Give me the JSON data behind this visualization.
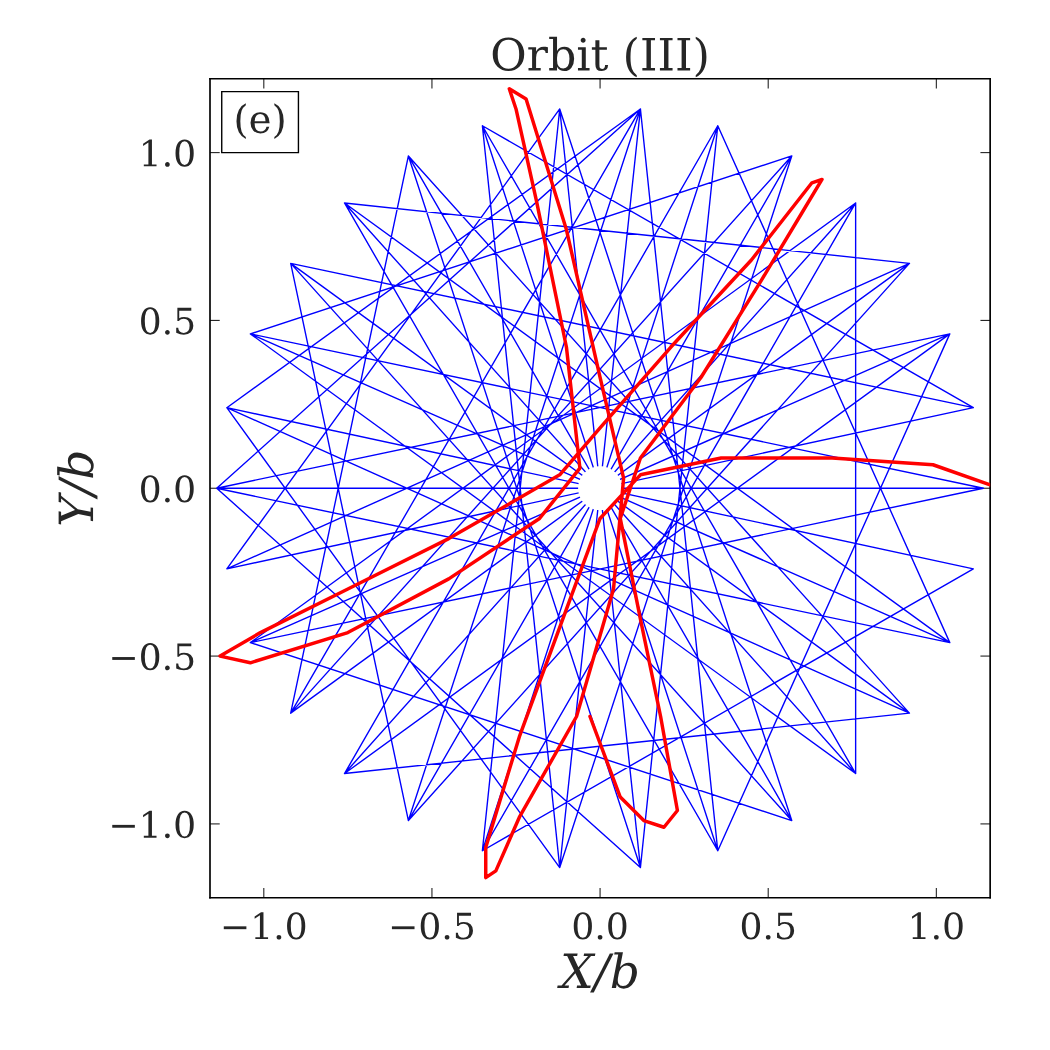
{
  "chart_data": {
    "type": "line",
    "title": "Orbit (III)",
    "xlabel": "X/b",
    "ylabel": "Y/b",
    "xlim": [
      -1.16,
      1.16
    ],
    "ylim": [
      -1.22,
      1.22
    ],
    "xticks": [
      {
        "value": -1.0,
        "label": "−1.0"
      },
      {
        "value": -0.5,
        "label": "−0.5"
      },
      {
        "value": 0.0,
        "label": "0.0"
      },
      {
        "value": 0.5,
        "label": "0.5"
      },
      {
        "value": 1.0,
        "label": "1.0"
      }
    ],
    "yticks": [
      {
        "value": -1.0,
        "label": "−1.0"
      },
      {
        "value": -0.5,
        "label": "−0.5"
      },
      {
        "value": 0.0,
        "label": "0.0"
      },
      {
        "value": 0.5,
        "label": "0.5"
      },
      {
        "value": 1.0,
        "label": "1.0"
      }
    ],
    "annotations": [
      "(e)"
    ],
    "series": [
      {
        "color": "#0000ff",
        "x": [
          1.14,
          -1.04,
          0.76,
          -0.35,
          -0.12,
          0.57,
          -0.92,
          0.12,
          -1.11,
          0.92,
          -0.57,
          0.12,
          0.35,
          -0.76,
          1.04,
          -1.14,
          1.04,
          -0.76,
          0.35,
          0.12,
          -0.57,
          0.92,
          -1.11,
          1.11,
          -0.92,
          0.57,
          -0.12,
          -0.35,
          0.76,
          -1.04,
          1.14,
          -1.14,
          0.12,
          -0.12,
          -1.11,
          1.11,
          -0.35,
          0.35,
          1.04,
          -1.04,
          0.57,
          -0.57,
          -0.92,
          0.92,
          -0.76,
          0.76,
          0.76,
          -0.76,
          0.92,
          -0.92,
          -0.57,
          0.57,
          -1.04,
          1.04,
          0.35,
          -0.35,
          1.11,
          -1.11,
          -0.12,
          0.12,
          -1.14
        ],
        "values": [
          0,
          0.46,
          -0.85,
          1.08,
          -1.13,
          0.99,
          -0.67,
          1.13,
          0.24,
          -0.67,
          0.99,
          -1.13,
          1.08,
          -0.85,
          0.46,
          0,
          -0.46,
          0.85,
          -1.08,
          1.13,
          -0.99,
          0.67,
          -0.24,
          0.24,
          0.67,
          -0.99,
          1.13,
          -1.08,
          0.85,
          -0.46,
          0,
          0,
          -1.13,
          1.13,
          -0.24,
          0.24,
          1.08,
          -1.08,
          0.46,
          -0.46,
          -0.99,
          0.99,
          -0.67,
          0.67,
          0.85,
          -0.85,
          0.85,
          -0.85,
          -0.67,
          0.67,
          -0.99,
          0.99,
          0.46,
          -0.46,
          1.08,
          -1.08,
          -0.24,
          0.24,
          -1.13,
          1.13,
          0
        ]
      },
      {
        "color": "#ff0000",
        "x": [
          -0.03,
          0.06,
          0.13,
          0.19,
          0.23,
          0.18,
          0.12,
          0.06,
          0.12,
          0.3,
          0.48,
          0.6,
          0.66,
          0.63,
          0.45,
          0.21,
          0.0,
          -0.12,
          -0.45,
          -0.75,
          -1.01,
          -1.13,
          -1.04,
          -0.75,
          -0.45,
          -0.18,
          -0.06,
          -0.1,
          -0.19,
          -0.25,
          -0.27,
          -0.22,
          -0.1,
          0.0,
          0.07,
          0.04,
          -0.07,
          -0.24,
          -0.31,
          -0.34,
          -0.34,
          -0.24,
          -0.1,
          0.0,
          0.12,
          0.36,
          0.69,
          0.99,
          1.16
        ],
        "values": [
          -0.68,
          -0.92,
          -0.99,
          -1.01,
          -0.96,
          -0.68,
          -0.39,
          -0.09,
          0.09,
          0.33,
          0.62,
          0.82,
          0.92,
          0.91,
          0.68,
          0.42,
          0.18,
          0.04,
          -0.15,
          -0.3,
          -0.43,
          -0.5,
          -0.52,
          -0.43,
          -0.27,
          -0.09,
          0.06,
          0.42,
          0.86,
          1.13,
          1.19,
          1.16,
          0.77,
          0.33,
          0.03,
          -0.3,
          -0.68,
          -0.98,
          -1.14,
          -1.16,
          -1.07,
          -0.74,
          -0.36,
          -0.09,
          0.04,
          0.09,
          0.09,
          0.07,
          0.01
        ]
      },
      {
        "type": "scatter",
        "marker": "circle",
        "color": "#ffffff",
        "x": [
          0
        ],
        "values": [
          0
        ]
      }
    ]
  }
}
